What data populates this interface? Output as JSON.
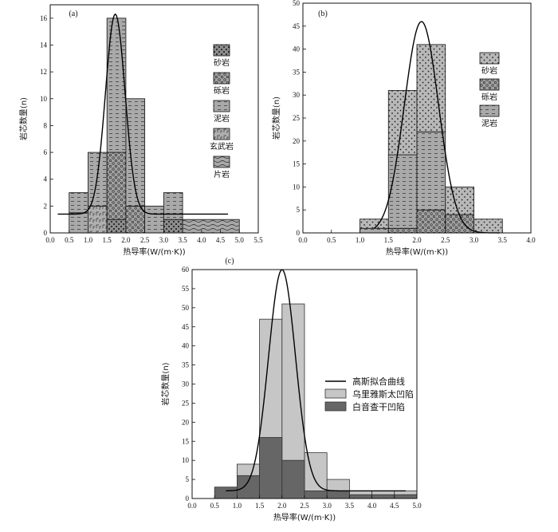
{
  "chart_data": [
    {
      "panel": "(a)",
      "type": "bar",
      "stacked": true,
      "xlabel": "热导率(W/(m·K))",
      "ylabel": "岩芯数量(n)",
      "xlim": [
        0,
        5.5
      ],
      "ylim": [
        0,
        17
      ],
      "xticks": [
        "0.0",
        "0.5",
        "1.0",
        "1.5",
        "2.0",
        "2.5",
        "3.0",
        "3.5",
        "4.0",
        "4.5",
        "5.0",
        "5.5"
      ],
      "yticks": [
        "0",
        "2",
        "4",
        "6",
        "8",
        "10",
        "12",
        "14",
        "16"
      ],
      "bins": [
        {
          "x0": 0.5,
          "x1": 1.0,
          "stack": [
            {
              "type": "泥岩",
              "count": 1.5
            },
            {
              "type": "泥岩",
              "count": 1.5
            }
          ],
          "total": 3
        },
        {
          "x0": 1.0,
          "x1": 1.5,
          "stack": [
            {
              "type": "玄武岩",
              "count": 2
            },
            {
              "type": "泥岩",
              "count": 4
            }
          ],
          "total": 6
        },
        {
          "x0": 1.5,
          "x1": 2.0,
          "stack": [
            {
              "type": "砂岩",
              "count": 1
            },
            {
              "type": "砾岩",
              "count": 5
            },
            {
              "type": "泥岩",
              "count": 10
            }
          ],
          "total": 16
        },
        {
          "x0": 2.0,
          "x1": 2.5,
          "stack": [
            {
              "type": "砾岩",
              "count": 2
            },
            {
              "type": "泥岩",
              "count": 8
            }
          ],
          "total": 10
        },
        {
          "x0": 2.5,
          "x1": 3.0,
          "stack": [
            {
              "type": "泥岩",
              "count": 2
            }
          ],
          "total": 2
        },
        {
          "x0": 3.0,
          "x1": 3.5,
          "stack": [
            {
              "type": "砂岩",
              "count": 1
            },
            {
              "type": "泥岩",
              "count": 2
            }
          ],
          "total": 3
        },
        {
          "x0": 3.5,
          "x1": 5.0,
          "stack": [
            {
              "type": "片岩",
              "count": 1
            }
          ],
          "total": 1
        }
      ],
      "fit_curve": {
        "type": "gaussian",
        "y0": 1.4,
        "amplitude": 14.9,
        "center": 1.72,
        "sigma": 0.26,
        "x_range": [
          0.2,
          4.7
        ]
      },
      "legend": [
        "砂岩",
        "砾岩",
        "泥岩",
        "玄武岩",
        "片岩"
      ],
      "legend_position": "right"
    },
    {
      "panel": "(b)",
      "type": "bar",
      "stacked": true,
      "xlabel": "热导率(W/(m·K))",
      "ylabel": "岩芯数量(n)",
      "xlim": [
        0,
        4.0
      ],
      "ylim": [
        0,
        50
      ],
      "xticks": [
        "0.0",
        "0.5",
        "1.0",
        "1.5",
        "2.0",
        "2.5",
        "3.0",
        "3.5",
        "4.0"
      ],
      "yticks": [
        "0",
        "5",
        "10",
        "15",
        "20",
        "25",
        "30",
        "35",
        "40",
        "45",
        "50"
      ],
      "bins": [
        {
          "x0": 1.0,
          "x1": 1.5,
          "stack": [
            {
              "type": "泥岩",
              "count": 1
            },
            {
              "type": "砂岩",
              "count": 2
            }
          ],
          "total": 3
        },
        {
          "x0": 1.5,
          "x1": 2.0,
          "stack": [
            {
              "type": "砾岩",
              "count": 1
            },
            {
              "type": "泥岩",
              "count": 16
            },
            {
              "type": "砂岩",
              "count": 14
            }
          ],
          "total": 31
        },
        {
          "x0": 2.0,
          "x1": 2.5,
          "stack": [
            {
              "type": "砾岩",
              "count": 5
            },
            {
              "type": "泥岩",
              "count": 17
            },
            {
              "type": "砂岩",
              "count": 19
            }
          ],
          "total": 41
        },
        {
          "x0": 2.5,
          "x1": 3.0,
          "stack": [
            {
              "type": "砾岩",
              "count": 4
            },
            {
              "type": "砂岩",
              "count": 6
            }
          ],
          "total": 10
        },
        {
          "x0": 3.0,
          "x1": 3.5,
          "stack": [
            {
              "type": "砂岩",
              "count": 3
            }
          ],
          "total": 3
        }
      ],
      "fit_curve": {
        "type": "gaussian",
        "y0": 0,
        "amplitude": 46,
        "center": 2.08,
        "sigma": 0.3,
        "x_range": [
          1.25,
          3.45
        ]
      },
      "legend": [
        "砂岩",
        "砾岩",
        "泥岩"
      ],
      "legend_position": "right"
    },
    {
      "panel": "(c)",
      "type": "bar",
      "stacked": false,
      "xlabel": "热导率(W/(m·K))",
      "ylabel": "岩芯数量(n)",
      "xlim": [
        0,
        5.0
      ],
      "ylim": [
        0,
        60
      ],
      "xticks": [
        "0.0",
        "0.5",
        "1.0",
        "1.5",
        "2.0",
        "2.5",
        "3.0",
        "3.5",
        "4.0",
        "4.5",
        "5.0"
      ],
      "yticks": [
        "0",
        "5",
        "10",
        "15",
        "20",
        "25",
        "30",
        "35",
        "40",
        "45",
        "50",
        "55",
        "60"
      ],
      "categories": [
        "0.5-1.0",
        "1.0-1.5",
        "1.5-2.0",
        "2.0-2.5",
        "2.5-3.0",
        "3.0-3.5",
        "3.5-4.0",
        "4.0-4.5",
        "4.5-5.0"
      ],
      "x_edges": [
        0.5,
        1.0,
        1.5,
        2.0,
        2.5,
        3.0,
        3.5,
        4.0,
        4.5,
        5.0
      ],
      "series": [
        {
          "name": "乌里雅斯太凹陷",
          "values": [
            0,
            9,
            47,
            51,
            12,
            5,
            2,
            2,
            2
          ],
          "color": "#c6c6c6"
        },
        {
          "name": "白音查干凹陷",
          "values": [
            3,
            6,
            16,
            10,
            2,
            2,
            1,
            1,
            1
          ],
          "color": "#666666"
        }
      ],
      "fit_curve": {
        "name": "高斯拟合曲线",
        "type": "gaussian",
        "y0": 2,
        "amplitude": 58,
        "center": 2.0,
        "sigma": 0.3,
        "x_range": [
          0.75,
          4.75
        ]
      },
      "legend": [
        "高斯拟合曲线",
        "乌里雅斯太凹陷",
        "白音查干凹陷"
      ],
      "legend_position": "right"
    }
  ],
  "icons": {
    "砂岩": "sparse-dots-pattern",
    "砾岩": "circles-pattern",
    "泥岩": "dashes-pattern",
    "玄武岩": "basalt-pattern",
    "片岩": "waves-pattern"
  }
}
